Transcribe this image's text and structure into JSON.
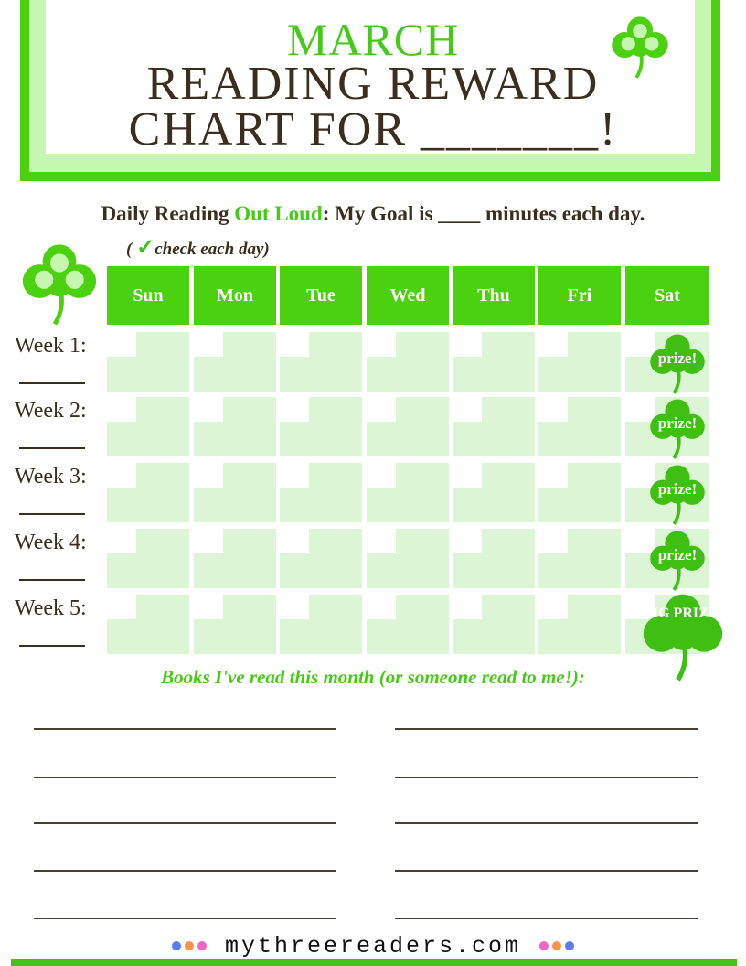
{
  "header": {
    "month": "MARCH",
    "title_line1": "READING REWARD",
    "title_line2": "CHART FOR _______!"
  },
  "goal": {
    "part1": "Daily Reading ",
    "highlight": "Out Loud",
    "part2": ": My Goal is ____ minutes each day."
  },
  "check_hint": {
    "open": "( ",
    "tick": "✓",
    "text": "check each day)"
  },
  "days": [
    "Sun",
    "Mon",
    "Tue",
    "Wed",
    "Thu",
    "Fri",
    "Sat"
  ],
  "weeks": [
    {
      "label": "Week 1:",
      "prize": "prize!"
    },
    {
      "label": "Week 2:",
      "prize": "prize!"
    },
    {
      "label": "Week 3:",
      "prize": "prize!"
    },
    {
      "label": "Week 4:",
      "prize": "prize!"
    },
    {
      "label": "Week 5:",
      "prize": "BIG PRIZE!"
    }
  ],
  "books_heading": "Books I've read this month (or someone read to me!):",
  "footer": {
    "site": "mythreereaders.com",
    "dot_colors": [
      "#5b7bef",
      "#f7944a",
      "#f066c0"
    ]
  },
  "colors": {
    "accent": "#4cd111",
    "light": "#c6f7b0",
    "cell": "#dcf5d5",
    "text": "#3a2e1f"
  }
}
